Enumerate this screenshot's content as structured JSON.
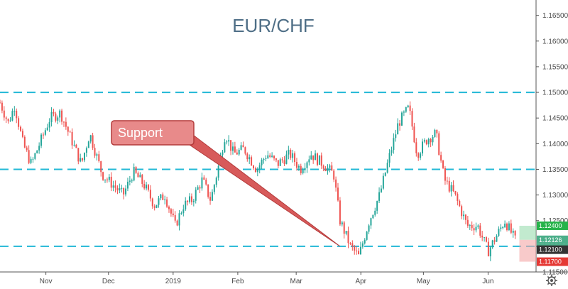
{
  "chart_data": {
    "type": "candlestick",
    "title": "EUR/CHF",
    "ylim": [
      1.115,
      1.168
    ],
    "y_ticks": [
      "1.16500",
      "1.16000",
      "1.15500",
      "1.15000",
      "1.14500",
      "1.14000",
      "1.13500",
      "1.13000",
      "1.12500",
      "1.12000",
      "1.11500"
    ],
    "x_ticks": [
      "Nov",
      "Dec",
      "2019",
      "Feb",
      "Mar",
      "Apr",
      "May",
      "Jun"
    ],
    "x_range": [
      "2018-10-10",
      "2019-06-24"
    ],
    "price_path": [
      [
        "2018-10-10",
        1.148
      ],
      [
        "2018-10-14",
        1.144
      ],
      [
        "2018-10-17",
        1.1475
      ],
      [
        "2018-10-21",
        1.14
      ],
      [
        "2018-10-25",
        1.136
      ],
      [
        "2018-10-29",
        1.14
      ],
      [
        "2018-11-03",
        1.145
      ],
      [
        "2018-11-08",
        1.146
      ],
      [
        "2018-11-14",
        1.14
      ],
      [
        "2018-11-18",
        1.136
      ],
      [
        "2018-11-22",
        1.142
      ],
      [
        "2018-11-28",
        1.134
      ],
      [
        "2018-12-03",
        1.132
      ],
      [
        "2018-12-08",
        1.13
      ],
      [
        "2018-12-13",
        1.1345
      ],
      [
        "2018-12-18",
        1.132
      ],
      [
        "2018-12-23",
        1.128
      ],
      [
        "2018-12-28",
        1.13
      ],
      [
        "2019-01-02",
        1.124
      ],
      [
        "2019-01-06",
        1.128
      ],
      [
        "2019-01-10",
        1.129
      ],
      [
        "2019-01-15",
        1.133
      ],
      [
        "2019-01-19",
        1.129
      ],
      [
        "2019-01-23",
        1.136
      ],
      [
        "2019-01-26",
        1.142
      ],
      [
        "2019-01-30",
        1.138
      ],
      [
        "2019-02-04",
        1.139
      ],
      [
        "2019-02-10",
        1.135
      ],
      [
        "2019-02-15",
        1.138
      ],
      [
        "2019-02-20",
        1.136
      ],
      [
        "2019-02-26",
        1.138
      ],
      [
        "2019-03-03",
        1.135
      ],
      [
        "2019-03-08",
        1.138
      ],
      [
        "2019-03-14",
        1.136
      ],
      [
        "2019-03-19",
        1.134
      ],
      [
        "2019-03-22",
        1.125
      ],
      [
        "2019-03-27",
        1.12
      ],
      [
        "2019-03-31",
        1.118
      ],
      [
        "2019-04-05",
        1.125
      ],
      [
        "2019-04-10",
        1.13
      ],
      [
        "2019-04-15",
        1.138
      ],
      [
        "2019-04-19",
        1.144
      ],
      [
        "2019-04-24",
        1.147
      ],
      [
        "2019-04-28",
        1.138
      ],
      [
        "2019-05-03",
        1.141
      ],
      [
        "2019-05-07",
        1.142
      ],
      [
        "2019-05-11",
        1.133
      ],
      [
        "2019-05-16",
        1.13
      ],
      [
        "2019-05-22",
        1.124
      ],
      [
        "2019-05-27",
        1.124
      ],
      [
        "2019-06-01",
        1.119
      ],
      [
        "2019-06-05",
        1.122
      ],
      [
        "2019-06-09",
        1.125
      ],
      [
        "2019-06-14",
        1.1212
      ]
    ],
    "horizontal_levels": [
      1.15,
      1.135,
      1.12
    ],
    "annotations": [
      {
        "text": "Support",
        "points_to_date": "2019-03-22",
        "points_to_price": 1.12
      }
    ],
    "position": {
      "entry": 1.12126,
      "target": 1.124,
      "stop": 1.117,
      "start_date": "2019-06-16",
      "end_date": "2019-06-24"
    },
    "price_tags": [
      {
        "value": "1.12400",
        "color": "#26b34a"
      },
      {
        "value": "1.12126",
        "color": "#4caf8a"
      },
      {
        "value": "01:32:35",
        "color": "#4caf8a"
      },
      {
        "value": "1.12100",
        "color": "#333333"
      },
      {
        "value": "1.11700",
        "color": "#e53935"
      }
    ],
    "colors": {
      "up": "#26a69a",
      "down": "#ef5350",
      "level": "#22b8d6",
      "callout": "#e88a8a",
      "callout_border": "#b33a3a"
    },
    "grid": false
  },
  "ui": {
    "settings_icon": "gear-icon"
  }
}
